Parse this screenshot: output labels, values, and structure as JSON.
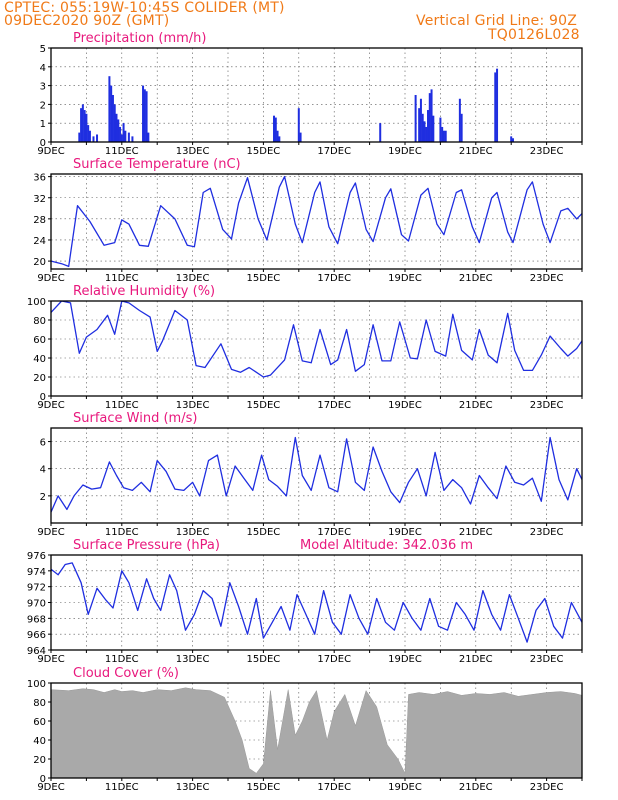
{
  "header": {
    "station": "CPTEC:   055:19W-10:45S   COLIDER (MT)",
    "run": "09DEC2020 90Z (GMT)",
    "grid": "Vertical Grid Line: 90Z",
    "code": "TQ0126L028"
  },
  "colors": {
    "header": "#f07a18",
    "title": "#e8187d",
    "line": "#1f2ee0",
    "bar": "#1f2ee0",
    "cloud": "#a9a9a9"
  },
  "chart_data": [
    {
      "type": "bar",
      "title": "Precipitation (mm/h)",
      "ylim": [
        0,
        5
      ],
      "yticks": [
        0,
        1,
        2,
        3,
        4,
        5
      ],
      "x_start": "2020-12-09",
      "x_labels": [
        "9DEC",
        "11DEC",
        "13DEC",
        "15DEC",
        "17DEC",
        "19DEC",
        "21DEC",
        "23DEC"
      ],
      "x_days": [
        0,
        2,
        4,
        6,
        8,
        10,
        12,
        14
      ],
      "x": [
        0.8,
        0.85,
        0.9,
        0.95,
        1.0,
        1.05,
        1.1,
        1.2,
        1.3,
        1.65,
        1.7,
        1.75,
        1.8,
        1.85,
        1.9,
        1.95,
        2.0,
        2.05,
        2.1,
        2.2,
        2.3,
        2.6,
        2.65,
        2.7,
        2.75,
        6.3,
        6.35,
        6.4,
        6.45,
        7.0,
        7.05,
        9.3,
        10.3,
        10.4,
        10.45,
        10.5,
        10.55,
        10.6,
        10.65,
        10.7,
        10.75,
        10.8,
        11.0,
        11.05,
        11.1,
        11.15,
        11.55,
        11.6,
        12.55,
        12.6,
        13.0,
        13.05
      ],
      "values": [
        0.5,
        1.8,
        2.0,
        1.7,
        1.5,
        0.9,
        0.6,
        0.3,
        0.4,
        3.5,
        3.0,
        2.5,
        2.0,
        1.5,
        1.2,
        0.8,
        0.4,
        1.0,
        0.6,
        0.5,
        0.3,
        3.0,
        2.8,
        2.7,
        0.5,
        1.4,
        1.3,
        0.6,
        0.3,
        1.8,
        0.5,
        1.0,
        2.5,
        1.8,
        2.3,
        1.5,
        1.1,
        0.8,
        1.7,
        2.6,
        2.8,
        1.4,
        1.3,
        0.8,
        0.6,
        0.6,
        2.3,
        1.5,
        3.7,
        3.9,
        0.3,
        0.2
      ]
    },
    {
      "type": "line",
      "title": "Surface Temperature (nC)",
      "ylim": [
        18.5,
        36.5
      ],
      "yticks": [
        20,
        24,
        28,
        32,
        36
      ],
      "x_start": "2020-12-09",
      "x_labels": [
        "9DEC",
        "11DEC",
        "13DEC",
        "15DEC",
        "17DEC",
        "19DEC",
        "21DEC",
        "23DEC"
      ],
      "x_days": [
        0,
        2,
        4,
        6,
        8,
        10,
        12,
        14
      ],
      "x": [
        0,
        0.3,
        0.5,
        0.75,
        1.1,
        1.5,
        1.8,
        2.0,
        2.2,
        2.5,
        2.75,
        3.1,
        3.5,
        3.85,
        4.05,
        4.3,
        4.5,
        4.85,
        5.1,
        5.3,
        5.55,
        5.85,
        6.1,
        6.45,
        6.6,
        6.9,
        7.1,
        7.45,
        7.6,
        7.85,
        8.1,
        8.45,
        8.6,
        8.9,
        9.1,
        9.45,
        9.6,
        9.9,
        10.1,
        10.45,
        10.65,
        10.9,
        11.1,
        11.45,
        11.6,
        11.9,
        12.1,
        12.45,
        12.6,
        12.9,
        13.05,
        13.45,
        13.6,
        13.9,
        14.1,
        14.4,
        14.6,
        14.85,
        15.0
      ],
      "values": [
        20,
        19.5,
        19,
        30.5,
        27.5,
        23,
        23.5,
        27.8,
        27,
        23,
        22.8,
        30.5,
        28,
        23,
        22.7,
        33,
        33.8,
        26,
        24.2,
        31,
        35.8,
        28,
        24,
        34,
        36,
        27,
        23.5,
        33,
        35,
        26.5,
        23.3,
        33,
        34.8,
        26,
        23.7,
        32,
        33.7,
        25,
        23.8,
        32.5,
        33.8,
        27,
        25,
        33,
        33.5,
        26.5,
        23.5,
        32,
        33,
        25.5,
        23.5,
        33.5,
        35,
        27,
        23.5,
        29.5,
        30,
        28,
        29
      ]
    },
    {
      "type": "line",
      "title": "Relative Humidity (%)",
      "ylim": [
        0,
        100
      ],
      "yticks": [
        0,
        20,
        40,
        60,
        80,
        100
      ],
      "x_start": "2020-12-09",
      "x_labels": [
        "9DEC",
        "11DEC",
        "13DEC",
        "15DEC",
        "17DEC",
        "19DEC",
        "21DEC",
        "23DEC"
      ],
      "x_days": [
        0,
        2,
        4,
        6,
        8,
        10,
        12,
        14
      ],
      "x": [
        0,
        0.3,
        0.55,
        0.8,
        1.0,
        1.3,
        1.6,
        1.8,
        2.0,
        2.2,
        2.5,
        2.8,
        3.0,
        3.15,
        3.5,
        3.85,
        4.1,
        4.35,
        4.8,
        5.1,
        5.35,
        5.6,
        6.0,
        6.2,
        6.6,
        6.85,
        7.1,
        7.35,
        7.6,
        7.9,
        8.1,
        8.35,
        8.6,
        8.85,
        9.1,
        9.35,
        9.6,
        9.85,
        10.15,
        10.35,
        10.6,
        10.85,
        11.15,
        11.35,
        11.6,
        11.9,
        12.1,
        12.35,
        12.6,
        12.9,
        13.1,
        13.35,
        13.6,
        13.85,
        14.1,
        14.4,
        14.6,
        14.85,
        15.0
      ],
      "values": [
        88,
        100,
        98,
        45,
        62,
        70,
        85,
        65,
        100,
        98,
        90,
        83,
        47,
        58,
        90,
        80,
        32,
        30,
        55,
        28,
        25,
        30,
        20,
        22,
        38,
        75,
        37,
        35,
        70,
        33,
        38,
        70,
        26,
        33,
        75,
        37,
        37,
        78,
        40,
        39,
        80,
        47,
        42,
        86,
        48,
        38,
        70,
        43,
        35,
        87,
        48,
        27,
        27,
        43,
        63,
        50,
        42,
        50,
        58
      ]
    },
    {
      "type": "line",
      "title": "Surface Wind (m/s)",
      "ylim": [
        0,
        7
      ],
      "yticks": [
        2,
        4,
        6
      ],
      "x_start": "2020-12-09",
      "x_labels": [
        "9DEC",
        "11DEC",
        "13DEC",
        "15DEC",
        "17DEC",
        "19DEC",
        "21DEC",
        "23DEC"
      ],
      "x_days": [
        0,
        2,
        4,
        6,
        8,
        10,
        12,
        14
      ],
      "x": [
        0,
        0.2,
        0.45,
        0.65,
        0.9,
        1.15,
        1.4,
        1.65,
        1.85,
        2.05,
        2.3,
        2.55,
        2.8,
        3.0,
        3.25,
        3.5,
        3.75,
        4.0,
        4.2,
        4.45,
        4.7,
        4.95,
        5.2,
        5.45,
        5.7,
        5.95,
        6.15,
        6.4,
        6.65,
        6.9,
        7.1,
        7.35,
        7.6,
        7.85,
        8.1,
        8.35,
        8.6,
        8.85,
        9.1,
        9.35,
        9.6,
        9.85,
        10.1,
        10.35,
        10.6,
        10.85,
        11.1,
        11.35,
        11.6,
        11.85,
        12.1,
        12.35,
        12.6,
        12.85,
        13.1,
        13.35,
        13.6,
        13.85,
        14.1,
        14.35,
        14.6,
        14.85,
        15.0
      ],
      "values": [
        0.8,
        2.0,
        1.0,
        2.0,
        2.8,
        2.5,
        2.6,
        4.5,
        3.5,
        2.6,
        2.4,
        3.0,
        2.3,
        4.6,
        3.8,
        2.5,
        2.4,
        3.0,
        2.0,
        4.6,
        5.0,
        2.0,
        4.2,
        3.3,
        2.4,
        5.0,
        3.2,
        2.7,
        2.0,
        6.3,
        3.5,
        2.4,
        5.0,
        2.6,
        2.3,
        6.2,
        3.0,
        2.4,
        5.6,
        3.8,
        2.3,
        1.5,
        3.0,
        4.0,
        2.0,
        5.2,
        2.4,
        3.2,
        2.6,
        1.4,
        3.5,
        2.6,
        1.8,
        4.2,
        3.0,
        2.8,
        3.3,
        1.6,
        6.3,
        3.2,
        1.7,
        4.0,
        3.2
      ]
    },
    {
      "type": "line",
      "title": "Surface Pressure (hPa)",
      "annotation": "Model Altitude: 342.036 m",
      "ylim": [
        964,
        976
      ],
      "yticks": [
        964,
        966,
        968,
        970,
        972,
        974,
        976
      ],
      "x_start": "2020-12-09",
      "x_labels": [
        "9DEC",
        "11DEC",
        "13DEC",
        "15DEC",
        "17DEC",
        "19DEC",
        "21DEC",
        "23DEC"
      ],
      "x_days": [
        0,
        2,
        4,
        6,
        8,
        10,
        12,
        14
      ],
      "x": [
        0,
        0.2,
        0.4,
        0.6,
        0.85,
        1.05,
        1.3,
        1.55,
        1.75,
        2.0,
        2.2,
        2.45,
        2.7,
        2.9,
        3.1,
        3.35,
        3.55,
        3.8,
        4.05,
        4.3,
        4.55,
        4.8,
        5.05,
        5.3,
        5.55,
        5.8,
        6.0,
        6.25,
        6.5,
        6.75,
        6.95,
        7.2,
        7.45,
        7.7,
        7.95,
        8.2,
        8.45,
        8.7,
        8.95,
        9.2,
        9.45,
        9.7,
        9.95,
        10.2,
        10.45,
        10.7,
        10.95,
        11.2,
        11.45,
        11.7,
        11.95,
        12.2,
        12.45,
        12.7,
        12.95,
        13.2,
        13.45,
        13.7,
        13.95,
        14.2,
        14.45,
        14.7,
        15.0
      ],
      "values": [
        974.2,
        973.5,
        974.8,
        975.0,
        972.5,
        968.5,
        971.8,
        970.3,
        969.3,
        974.0,
        972.5,
        969.0,
        973.0,
        970.5,
        969.0,
        973.5,
        971.5,
        966.5,
        968.5,
        971.5,
        970.5,
        967.0,
        972.5,
        969.5,
        966.0,
        970.5,
        965.5,
        967.5,
        969.5,
        966.5,
        971.0,
        968.5,
        966.0,
        971.5,
        967.5,
        966.0,
        971.0,
        968.0,
        966.0,
        970.5,
        967.5,
        966.5,
        970.0,
        968.0,
        966.5,
        970.5,
        967.0,
        966.5,
        970.0,
        968.5,
        966.5,
        971.5,
        968.5,
        966.5,
        971.0,
        968.0,
        965.0,
        969.0,
        970.5,
        967.0,
        965.5,
        970.0,
        967.5
      ]
    },
    {
      "type": "area",
      "title": "Cloud Cover (%)",
      "ylim": [
        0,
        100
      ],
      "yticks": [
        0,
        20,
        40,
        60,
        80,
        100
      ],
      "x_start": "2020-12-09",
      "x_labels": [
        "9DEC",
        "11DEC",
        "13DEC",
        "15DEC",
        "17DEC",
        "19DEC",
        "21DEC",
        "23DEC"
      ],
      "x_days": [
        0,
        2,
        4,
        6,
        8,
        10,
        12,
        14
      ],
      "x": [
        0,
        0.5,
        0.9,
        1.2,
        1.5,
        1.8,
        2.0,
        2.3,
        2.6,
        3.0,
        3.4,
        3.8,
        4.1,
        4.5,
        4.9,
        5.2,
        5.4,
        5.6,
        5.8,
        6.0,
        6.2,
        6.4,
        6.7,
        6.9,
        7.1,
        7.3,
        7.5,
        7.8,
        8.0,
        8.3,
        8.6,
        8.9,
        9.2,
        9.5,
        9.8,
        10.0,
        10.1,
        10.4,
        10.8,
        11.2,
        11.6,
        12.0,
        12.4,
        12.8,
        13.2,
        13.6,
        14.0,
        14.4,
        14.8,
        15.0
      ],
      "values": [
        93,
        92,
        94,
        93,
        90,
        93,
        91,
        92,
        90,
        93,
        92,
        95,
        93,
        92,
        85,
        60,
        40,
        10,
        5,
        15,
        92,
        30,
        93,
        45,
        60,
        80,
        92,
        40,
        70,
        88,
        55,
        92,
        75,
        35,
        20,
        5,
        88,
        90,
        88,
        91,
        87,
        89,
        88,
        90,
        86,
        88,
        90,
        91,
        89,
        87
      ]
    }
  ]
}
